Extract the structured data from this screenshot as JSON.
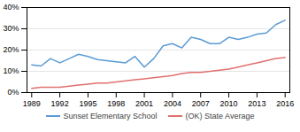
{
  "chart_data": {
    "type": "line",
    "x": [
      1989,
      1990,
      1991,
      1992,
      1993,
      1994,
      1995,
      1996,
      1997,
      1998,
      1999,
      2000,
      2001,
      2002,
      2003,
      2004,
      2005,
      2006,
      2007,
      2008,
      2009,
      2010,
      2011,
      2012,
      2013,
      2014,
      2015,
      2016
    ],
    "series": [
      {
        "name": "Sunset Elementary School",
        "color": "#5b9bd5",
        "values": [
          13,
          12.5,
          16,
          14,
          16,
          18,
          17,
          15.5,
          15,
          14.5,
          14,
          17,
          12,
          16,
          22,
          23,
          21,
          26,
          25,
          23,
          23,
          26,
          25,
          26,
          27.5,
          28,
          32,
          34
        ]
      },
      {
        "name": "(OK) State Average",
        "color": "#e07070",
        "values": [
          2,
          2.5,
          2.5,
          2.5,
          3,
          3.5,
          4,
          4.5,
          4.5,
          5,
          5.5,
          6,
          6.5,
          7,
          7.5,
          8,
          9,
          9.5,
          9.5,
          10,
          10.5,
          11,
          12,
          13,
          14,
          15,
          16,
          16.5
        ]
      }
    ],
    "xlim": [
      1988.5,
      2016.5
    ],
    "xticks": [
      1989,
      1992,
      1995,
      1998,
      2001,
      2004,
      2007,
      2010,
      2013,
      2016
    ],
    "ylim": [
      0,
      40
    ],
    "yticks": [
      {
        "value": 0,
        "label": "0%"
      },
      {
        "value": 10,
        "label": "10%"
      },
      {
        "value": 20,
        "label": "20%"
      },
      {
        "value": 30,
        "label": "30%"
      },
      {
        "value": 40,
        "label": "40%"
      }
    ],
    "grid": true,
    "legend": "bottom"
  }
}
